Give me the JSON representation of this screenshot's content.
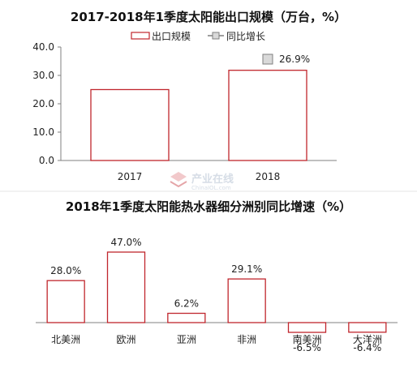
{
  "chart_data": [
    {
      "type": "bar",
      "title": "2017-2018年1季度太阳能出口规模（万台，%）",
      "categories": [
        "2017",
        "2018"
      ],
      "series": [
        {
          "name": "出口规模",
          "values": [
            25.0,
            31.8
          ]
        },
        {
          "name": "同比增长",
          "values": [
            null,
            26.9
          ],
          "labels": [
            "",
            "26.9%"
          ]
        }
      ],
      "ylim": [
        0,
        40
      ],
      "yticks": [
        "40.0",
        "30.0",
        "20.0",
        "10.0",
        "0.0"
      ],
      "legend": "top-center",
      "grid": false
    },
    {
      "type": "bar",
      "title": "2018年1季度太阳能热水器细分洲别同比增速（%）",
      "categories": [
        "北美洲",
        "欧洲",
        "亚洲",
        "非洲",
        "南美洲",
        "大洋洲"
      ],
      "series": [
        {
          "values": [
            28.0,
            47.0,
            6.2,
            29.1,
            -6.5,
            -6.4
          ],
          "labels": [
            "28.0%",
            "47.0%",
            "6.2%",
            "29.1%",
            "-6.5%",
            "-6.4%"
          ]
        }
      ],
      "ylim": [
        -10,
        50
      ],
      "grid": false
    }
  ],
  "watermark": {
    "main": "产业在线",
    "sub": "ChinaIOL.com"
  },
  "colors": {
    "bar_border": "#c0262d",
    "bar_fill": "#ffffff",
    "axis": "#808080",
    "marker_fill": "#d9d9d9",
    "marker_border": "#7f7f7f"
  }
}
